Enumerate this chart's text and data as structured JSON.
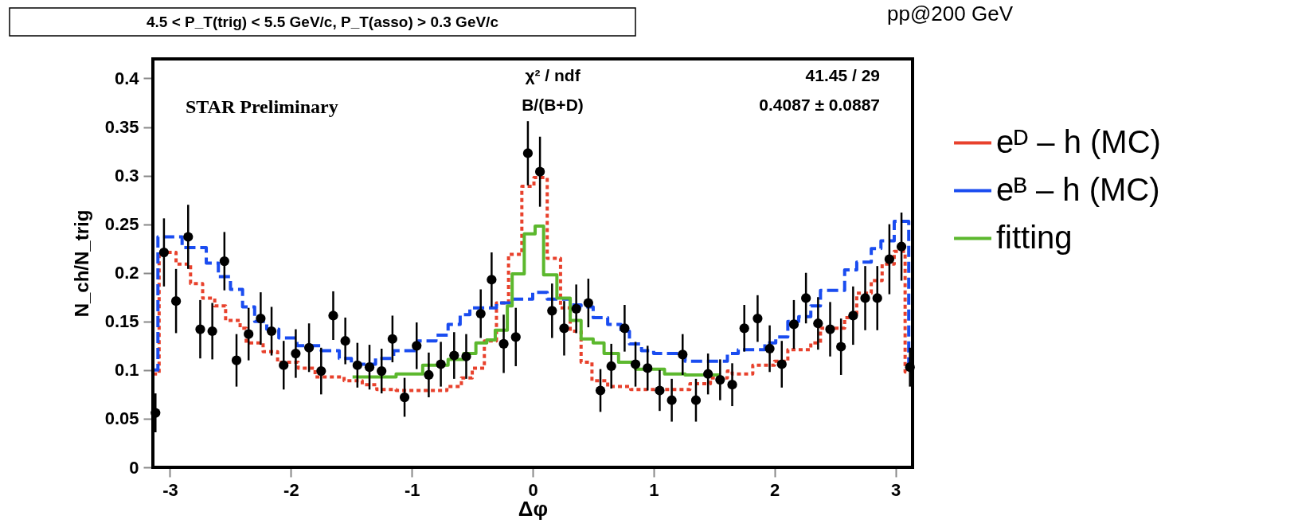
{
  "chart_data": {
    "type": "scatter",
    "title": "4.5 < P_T(trig) < 5.5 GeV/c, P_T(asso) > 0.3 GeV/c",
    "xlabel": "Δφ",
    "ylabel": "N_ch/N_trig",
    "annotations": [
      "STAR Preliminary",
      "χ² / ndf",
      "B/(B+D)",
      "41.45 / 29",
      "0.4087 ± 0.0887",
      "pp@200 GeV"
    ],
    "xlim": [
      -3.1416,
      3.1416
    ],
    "ylim": [
      0,
      0.42
    ],
    "xticks": [
      -3,
      -2,
      -1,
      0,
      1,
      2,
      3
    ],
    "yticks": [
      0,
      0.05,
      0.1,
      0.15,
      0.2,
      0.25,
      0.3,
      0.35,
      0.4
    ],
    "grid": false,
    "legend": "right",
    "series": [
      {
        "type": "step",
        "name": "eᴰ – h (MC)",
        "color": "#e8412c",
        "line_style": "dotted",
        "x": [
          -3.14,
          -3.09,
          -2.95,
          -2.83,
          -2.73,
          -2.63,
          -2.54,
          -2.42,
          -2.37,
          -2.23,
          -2.11,
          -1.94,
          -1.8,
          -1.56,
          -1.41,
          -1.29,
          -1.13,
          -0.89,
          -0.71,
          -0.59,
          -0.5,
          -0.4,
          -0.3,
          -0.2,
          -0.09,
          0.01,
          0.12,
          0.23,
          0.31,
          0.4,
          0.49,
          0.62,
          0.81,
          1.04,
          1.3,
          1.47,
          1.61,
          1.65,
          1.82,
          2.0,
          2.11,
          2.3,
          2.38,
          2.58,
          2.68,
          2.8,
          2.89,
          2.99,
          3.08,
          3.14
        ],
        "values": [
          0.096,
          0.221,
          0.209,
          0.189,
          0.174,
          0.166,
          0.151,
          0.143,
          0.128,
          0.119,
          0.108,
          0.102,
          0.093,
          0.089,
          0.085,
          0.08,
          0.079,
          0.079,
          0.083,
          0.092,
          0.102,
          0.13,
          0.169,
          0.219,
          0.289,
          0.298,
          0.215,
          0.164,
          0.14,
          0.108,
          0.089,
          0.083,
          0.08,
          0.08,
          0.086,
          0.092,
          0.099,
          0.096,
          0.105,
          0.109,
          0.121,
          0.128,
          0.143,
          0.154,
          0.179,
          0.192,
          0.209,
          0.222,
          0.098,
          0.098
        ]
      },
      {
        "type": "step",
        "name": "eᴮ – h (MC)",
        "color": "#1a4cf0",
        "line_style": "dashed",
        "x": [
          -3.14,
          -3.1,
          -2.9,
          -2.7,
          -2.6,
          -2.5,
          -2.4,
          -2.3,
          -2.2,
          -2.1,
          -1.95,
          -1.75,
          -1.6,
          -1.5,
          -1.3,
          -1.15,
          -0.95,
          -0.8,
          -0.7,
          -0.6,
          -0.52,
          -0.3,
          -0.17,
          0.0,
          0.12,
          0.31,
          0.4,
          0.5,
          0.62,
          0.73,
          0.8,
          0.9,
          1.0,
          1.26,
          1.61,
          1.7,
          1.92,
          2.01,
          2.11,
          2.2,
          2.3,
          2.38,
          2.58,
          2.68,
          2.8,
          2.88,
          2.99,
          3.11,
          3.14
        ],
        "values": [
          0.1,
          0.237,
          0.226,
          0.21,
          0.196,
          0.183,
          0.165,
          0.15,
          0.142,
          0.133,
          0.125,
          0.12,
          0.112,
          0.106,
          0.112,
          0.12,
          0.13,
          0.136,
          0.147,
          0.157,
          0.164,
          0.169,
          0.173,
          0.18,
          0.173,
          0.167,
          0.165,
          0.154,
          0.147,
          0.14,
          0.127,
          0.12,
          0.117,
          0.109,
          0.117,
          0.121,
          0.128,
          0.134,
          0.15,
          0.155,
          0.166,
          0.182,
          0.203,
          0.211,
          0.225,
          0.233,
          0.253,
          0.098,
          0.098
        ]
      },
      {
        "type": "step",
        "name": "fitting",
        "color": "#5cb82e",
        "line_style": "solid",
        "x": [
          -1.49,
          -1.13,
          -0.91,
          -0.7,
          -0.57,
          -0.47,
          -0.38,
          -0.31,
          -0.21,
          -0.17,
          -0.07,
          0.02,
          0.09,
          0.2,
          0.31,
          0.4,
          0.5,
          0.59,
          0.71,
          0.85,
          1.09,
          1.26,
          1.47,
          1.55
        ],
        "values": [
          0.093,
          0.096,
          0.105,
          0.111,
          0.117,
          0.128,
          0.131,
          0.141,
          0.166,
          0.199,
          0.24,
          0.248,
          0.198,
          0.174,
          0.151,
          0.132,
          0.128,
          0.117,
          0.108,
          0.101,
          0.096,
          0.095,
          0.095,
          0.095
        ]
      },
      {
        "color": "#000000",
        "marker": "circle",
        "x": [
          -3.12,
          -3.05,
          -2.95,
          -2.85,
          -2.75,
          -2.65,
          -2.55,
          -2.45,
          -2.35,
          -2.25,
          -2.16,
          -2.06,
          -1.96,
          -1.85,
          -1.75,
          -1.65,
          -1.55,
          -1.45,
          -1.35,
          -1.25,
          -1.16,
          -1.06,
          -0.96,
          -0.86,
          -0.76,
          -0.65,
          -0.55,
          -0.43,
          -0.34,
          -0.24,
          -0.14,
          -0.04,
          0.06,
          0.16,
          0.26,
          0.36,
          0.46,
          0.56,
          0.65,
          0.76,
          0.85,
          0.95,
          1.05,
          1.15,
          1.24,
          1.35,
          1.45,
          1.55,
          1.65,
          1.75,
          1.86,
          1.96,
          2.06,
          2.16,
          2.26,
          2.36,
          2.46,
          2.55,
          2.65,
          2.75,
          2.85,
          2.95,
          3.05,
          3.12
        ],
        "values": [
          0.056,
          0.221,
          0.171,
          0.237,
          0.142,
          0.14,
          0.212,
          0.11,
          0.137,
          0.153,
          0.14,
          0.105,
          0.117,
          0.123,
          0.099,
          0.156,
          0.13,
          0.105,
          0.103,
          0.099,
          0.132,
          0.072,
          0.125,
          0.095,
          0.106,
          0.115,
          0.114,
          0.158,
          0.193,
          0.127,
          0.134,
          0.323,
          0.304,
          0.161,
          0.143,
          0.163,
          0.169,
          0.079,
          0.104,
          0.143,
          0.106,
          0.102,
          0.079,
          0.069,
          0.116,
          0.069,
          0.096,
          0.09,
          0.085,
          0.143,
          0.153,
          0.122,
          0.106,
          0.147,
          0.174,
          0.148,
          0.142,
          0.124,
          0.156,
          0.174,
          0.174,
          0.214,
          0.227,
          0.103
        ],
        "errors": [
          0.02,
          0.035,
          0.033,
          0.033,
          0.03,
          0.029,
          0.03,
          0.027,
          0.027,
          0.027,
          0.025,
          0.025,
          0.025,
          0.025,
          0.024,
          0.025,
          0.024,
          0.023,
          0.023,
          0.023,
          0.024,
          0.02,
          0.024,
          0.023,
          0.023,
          0.024,
          0.023,
          0.025,
          0.028,
          0.03,
          0.03,
          0.033,
          0.036,
          0.028,
          0.028,
          0.025,
          0.025,
          0.022,
          0.023,
          0.024,
          0.023,
          0.023,
          0.021,
          0.022,
          0.021,
          0.022,
          0.021,
          0.021,
          0.022,
          0.024,
          0.024,
          0.024,
          0.024,
          0.025,
          0.026,
          0.027,
          0.028,
          0.029,
          0.03,
          0.033,
          0.033,
          0.036,
          0.035,
          0.02
        ]
      }
    ]
  }
}
